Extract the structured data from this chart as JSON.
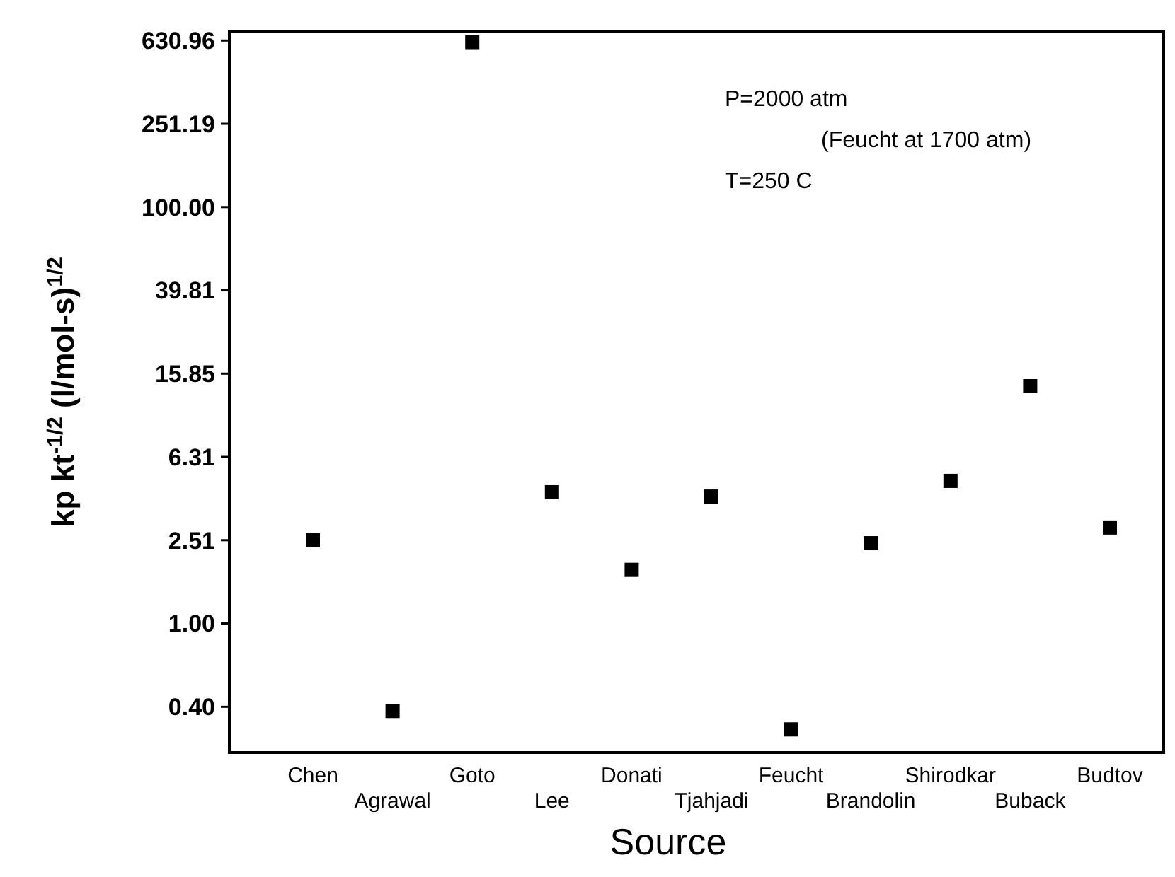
{
  "chart_data": {
    "type": "scatter",
    "xlabel": "Source",
    "ylabel": "kp kt$^{-1/2}$ (l/mol-s)$^{1/2}$",
    "categories": [
      "Chen",
      "Agrawal",
      "Goto",
      "Lee",
      "Donati",
      "Tjahjadi",
      "Feucht",
      "Brandolin",
      "Shirodkar",
      "Buback",
      "Budtov"
    ],
    "series": [
      {
        "color": "#000000",
        "values": [
          2.51,
          0.38,
          620,
          4.27,
          1.81,
          4.07,
          0.31,
          2.43,
          4.84,
          13.8,
          2.89
        ]
      }
    ],
    "log": "y",
    "ylim": [
      0.24,
      700
    ],
    "yticks": [
      {
        "value": 0.398,
        "label": "0.40"
      },
      {
        "value": 1,
        "label": "1.00"
      },
      {
        "value": 2.512,
        "label": "2.51"
      },
      {
        "value": 6.31,
        "label": "6.31"
      },
      {
        "value": 15.85,
        "label": "15.85"
      },
      {
        "value": 39.81,
        "label": "39.81"
      },
      {
        "value": 100,
        "label": "100.00"
      },
      {
        "value": 251.19,
        "label": "251.19"
      },
      {
        "value": 630.96,
        "label": "630.96"
      }
    ],
    "marker": "square",
    "grid": false,
    "annotations": [
      "P=2000 atm",
      "(Feucht at 1700 atm)",
      "T=250 C"
    ]
  }
}
